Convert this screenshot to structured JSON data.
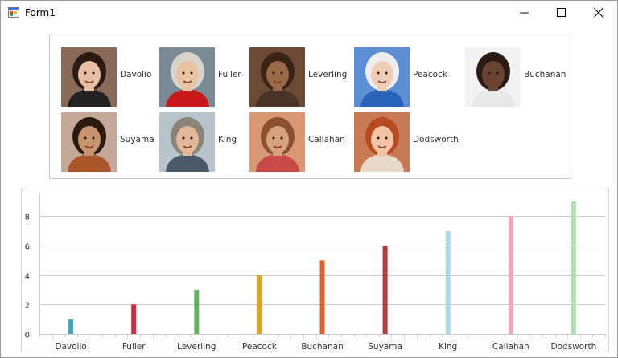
{
  "window": {
    "title": "Form1"
  },
  "legend": {
    "items": [
      {
        "name": "Davolio",
        "skin": "#e8bfa5",
        "hair": "#2a1a12",
        "shirt": "#222222",
        "bg": "#8a6b5a"
      },
      {
        "name": "Fuller",
        "skin": "#e9c3a4",
        "hair": "#d8d4cc",
        "shirt": "#c8181c",
        "bg": "#7a8a94"
      },
      {
        "name": "Leverling",
        "skin": "#9a6a48",
        "hair": "#3a2416",
        "shirt": "#4a3428",
        "bg": "#6d4a36"
      },
      {
        "name": "Peacock",
        "skin": "#efcdb6",
        "hair": "#eeeeee",
        "shirt": "#2a64b8",
        "bg": "#5c8ed6"
      },
      {
        "name": "Buchanan",
        "skin": "#6a4432",
        "hair": "#2a1c14",
        "shirt": "#e8e8e8",
        "bg": "#f2f2f2"
      },
      {
        "name": "Suyama",
        "skin": "#c89470",
        "hair": "#2a1a10",
        "shirt": "#a8562a",
        "bg": "#c4a898"
      },
      {
        "name": "King",
        "skin": "#e2b89a",
        "hair": "#8a8478",
        "shirt": "#4a5a6a",
        "bg": "#b8c4cc"
      },
      {
        "name": "Callahan",
        "skin": "#d6a27e",
        "hair": "#8a5030",
        "shirt": "#c84a48",
        "bg": "#d89874"
      },
      {
        "name": "Dodsworth",
        "skin": "#f0c4a4",
        "hair": "#b84a22",
        "shirt": "#e8d8c8",
        "bg": "#c87a54"
      }
    ]
  },
  "chart_data": {
    "type": "bar",
    "categories": [
      "Davolio",
      "Fuller",
      "Leverling",
      "Peacock",
      "Buchanan",
      "Suyama",
      "King",
      "Callahan",
      "Dodsworth"
    ],
    "values": [
      1,
      2,
      3,
      4,
      5,
      6,
      7,
      8,
      9
    ],
    "colors": [
      "#3fa4bf",
      "#d3263f",
      "#5db55d",
      "#e0a31a",
      "#e4612a",
      "#b9383a",
      "#acd9e9",
      "#efaab6",
      "#b3deb3"
    ],
    "ylim": [
      0,
      9.6
    ],
    "yticks": [
      "0",
      "2",
      "4",
      "6",
      "8"
    ],
    "grid": true,
    "title": "",
    "xlabel": "",
    "ylabel": ""
  }
}
